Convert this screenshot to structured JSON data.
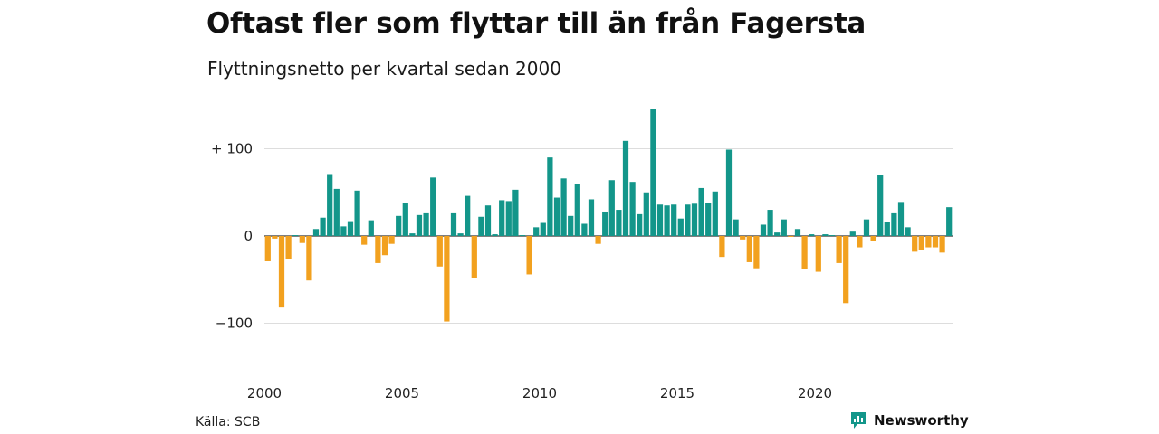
{
  "title": "Oftast fler som flyttar till än från Fagersta",
  "subtitle": "Flyttningsnetto per kvartal sedan 2000",
  "source": "Källa: SCB",
  "brand": {
    "name": "Newsworthy",
    "icon": "newsworthy-logo-icon"
  },
  "colors": {
    "positive": "#13968a",
    "negative": "#f2a11f",
    "grid": "#dddddd",
    "brand": "#13968a"
  },
  "chart_data": {
    "type": "bar",
    "title": "Oftast fler som flyttar till än från Fagersta",
    "subtitle": "Flyttningsnetto per kvartal sedan 2000",
    "ylim": [
      -140,
      150
    ],
    "y_ticks": [
      {
        "value": 100,
        "label": "+ 100"
      },
      {
        "value": 0,
        "label": "0"
      },
      {
        "value": -100,
        "label": "−100"
      }
    ],
    "x_ticks": [
      {
        "year": 2000,
        "label": "2000"
      },
      {
        "year": 2005,
        "label": "2005"
      },
      {
        "year": 2010,
        "label": "2010"
      },
      {
        "year": 2015,
        "label": "2015"
      },
      {
        "year": 2020,
        "label": "2020"
      }
    ],
    "grid": true,
    "start_year": 2000,
    "start_quarter": 1,
    "values": [
      -29,
      -3,
      -82,
      -26,
      1,
      -8,
      -51,
      8,
      21,
      71,
      54,
      11,
      17,
      52,
      -10,
      18,
      -31,
      -22,
      -9,
      23,
      38,
      3,
      24,
      26,
      67,
      -35,
      -98,
      26,
      3,
      46,
      -48,
      22,
      35,
      2,
      41,
      40,
      53,
      1,
      -44,
      10,
      15,
      90,
      44,
      66,
      23,
      60,
      14,
      42,
      -9,
      28,
      64,
      30,
      109,
      62,
      25,
      50,
      146,
      36,
      35,
      36,
      20,
      36,
      37,
      55,
      38,
      51,
      -24,
      99,
      19,
      -4,
      -30,
      -37,
      13,
      30,
      4,
      19,
      -1,
      8,
      -38,
      2,
      -41,
      2,
      1,
      -31,
      -77,
      5,
      -13,
      19,
      -6,
      70,
      16,
      26,
      39,
      10,
      -18,
      -16,
      -13,
      -13,
      -19,
      33
    ]
  }
}
